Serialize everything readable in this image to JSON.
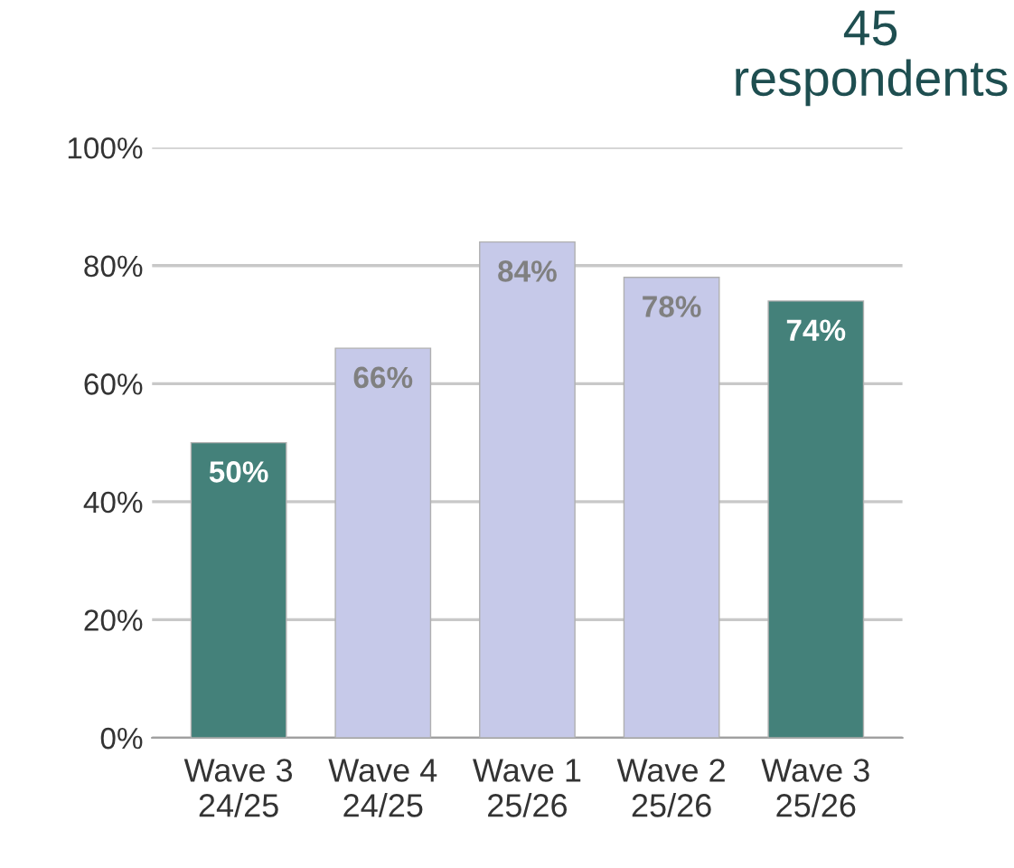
{
  "chart_data": {
    "type": "bar",
    "title": "45\nrespondents",
    "categories": [
      "Wave 3\n24/25",
      "Wave 4\n24/25",
      "Wave 1\n25/26",
      "Wave 2\n25/26",
      "Wave 3\n25/26"
    ],
    "values": [
      50,
      66,
      84,
      78,
      74
    ],
    "colors": [
      "#44817a",
      "#c6c9e9",
      "#c6c9e9",
      "#c6c9e9",
      "#44817a"
    ],
    "value_labels": [
      "50%",
      "66%",
      "84%",
      "78%",
      "74%"
    ],
    "ylim": [
      0,
      100
    ],
    "yticks": [
      {
        "value": 0,
        "label": "0%"
      },
      {
        "value": 20,
        "label": "20%"
      },
      {
        "value": 40,
        "label": "40%"
      },
      {
        "value": 60,
        "label": "60%"
      },
      {
        "value": 80,
        "label": "80%"
      },
      {
        "value": 100,
        "label": "100%"
      }
    ],
    "grid": "y",
    "legend": false
  }
}
